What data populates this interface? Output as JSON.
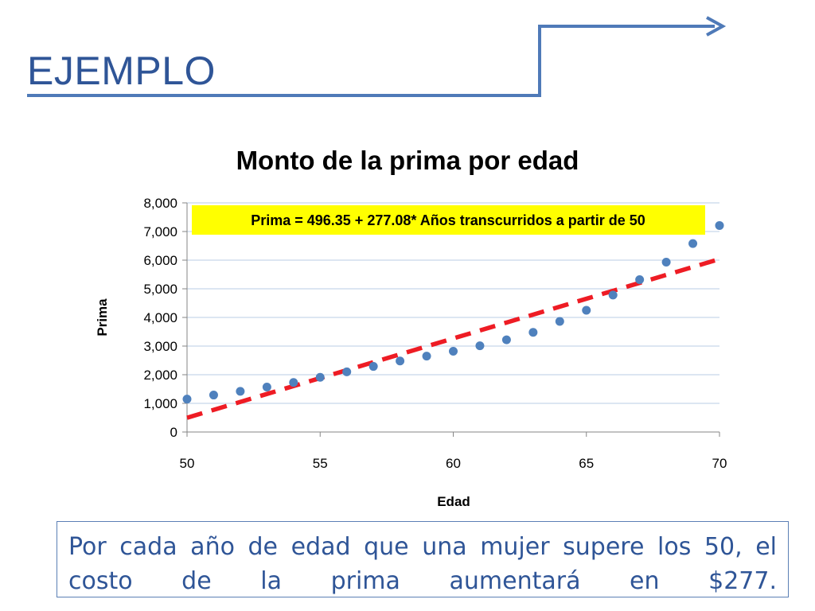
{
  "slide": {
    "title": "EJEMPLO",
    "caption": "Por cada año de edad que una mujer supere los 50, el costo de la prima aumentará en $277."
  },
  "colors": {
    "title": "#2f5597",
    "connector_line": "#4f7ab8",
    "points": "#4f81bd",
    "trendline": "#ee1c24",
    "annotation_bg": "#ffff00",
    "gridline": "#b8cce4"
  },
  "chart_data": {
    "type": "scatter",
    "title": "Monto de la prima por edad",
    "xlabel": "Edad",
    "ylabel": "Prima",
    "xlim": [
      50,
      70
    ],
    "ylim": [
      0,
      8000
    ],
    "x_ticks": [
      50,
      55,
      60,
      65,
      70
    ],
    "y_ticks": [
      0,
      1000,
      2000,
      3000,
      4000,
      5000,
      6000,
      7000,
      8000
    ],
    "y_tick_labels": [
      "0",
      "1,000",
      "2,000",
      "3,000",
      "4,000",
      "5,000",
      "6,000",
      "7,000",
      "8,000"
    ],
    "grid": "horizontal",
    "series": [
      {
        "x": [
          50,
          51,
          52,
          53,
          54,
          55,
          56,
          57,
          58,
          59,
          60,
          61,
          62,
          63,
          64,
          65,
          66,
          67,
          68,
          69,
          70
        ],
        "y": [
          1150,
          1290,
          1420,
          1570,
          1730,
          1910,
          2100,
          2290,
          2480,
          2650,
          2820,
          3010,
          3220,
          3480,
          3860,
          4250,
          4780,
          5320,
          5930,
          6580,
          7210
        ]
      }
    ],
    "trendline": {
      "intercept": 496.35,
      "slope": 277.08,
      "x_origin": 50,
      "style": "dashed",
      "annotation": "Prima = 496.35 + 277.08* Años transcurridos a partir de 50"
    }
  }
}
